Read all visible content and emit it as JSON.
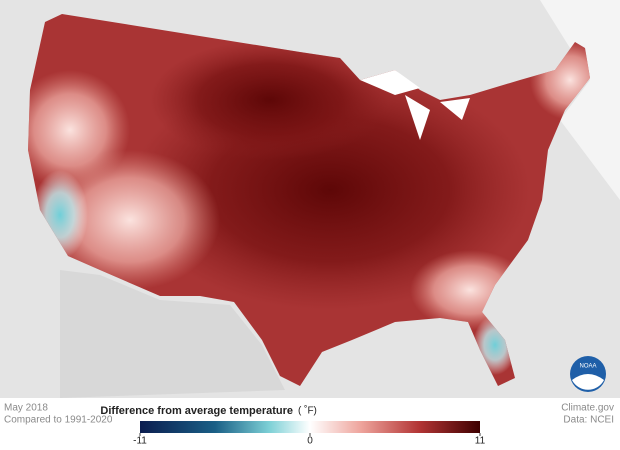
{
  "header": {
    "period": "May 2018",
    "baseline": "Compared to 1991-2020"
  },
  "legend": {
    "title": "Difference from average temperature",
    "unit": "( ˚F)",
    "range": [
      -11,
      11
    ],
    "ticks": [
      -11,
      0,
      11
    ]
  },
  "credits": {
    "site": "Climate.gov",
    "source": "Data: NCEI",
    "logo": "NOAA"
  }
}
